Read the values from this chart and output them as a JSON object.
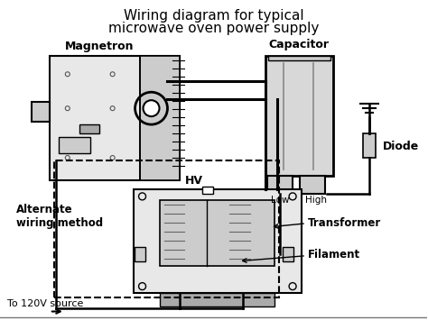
{
  "title_line1": "Wiring diagram for typical",
  "title_line2": "microwave oven power supply",
  "title_fontsize": 11,
  "label_magnetron": "Magnetron",
  "label_capacitor": "Capacitor",
  "label_diode": "Diode",
  "label_transformer": "Transformer",
  "label_filament": "Filament",
  "label_hv": "HV",
  "label_low": "Low",
  "label_high": "High",
  "label_alt_wiring": "Alternate\nwiring method",
  "label_120v": "To 120V source",
  "bg_color": "#ffffff",
  "lc": "#000000",
  "fill_light": "#e8e8e8",
  "fill_med": "#cccccc",
  "fill_dark": "#aaaaaa",
  "fill_cap": "#d8d8d8"
}
